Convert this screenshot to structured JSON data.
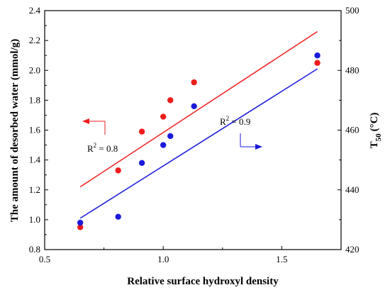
{
  "chart_data": {
    "type": "scatter",
    "title": "",
    "xlabel": "Relative surface hydroxyl density",
    "ylabel": "The amount of desorbed water (mmol/g)",
    "y2label_main": "T",
    "y2label_sub": "50",
    "y2label_unit": "(°C)",
    "xlim": [
      0.5,
      1.75
    ],
    "ylim": [
      0.8,
      2.4
    ],
    "y2lim": [
      420,
      500
    ],
    "x_ticks": [
      "0.5",
      "1.0",
      "1.5"
    ],
    "y_ticks": [
      "0.8",
      "1.0",
      "1.2",
      "1.4",
      "1.6",
      "1.8",
      "2.0",
      "2.2",
      "2.4"
    ],
    "y2_ticks": [
      "420",
      "440",
      "460",
      "480",
      "500"
    ],
    "grid": false,
    "series": [
      {
        "axis": "left",
        "color": "#ee1c1c",
        "x": [
          0.65,
          0.81,
          0.91,
          1.0,
          1.03,
          1.13,
          1.65
        ],
        "y": [
          0.95,
          1.33,
          1.59,
          1.69,
          1.8,
          1.92,
          2.05
        ],
        "fit": {
          "x": [
            0.65,
            1.65
          ],
          "y": [
            1.22,
            2.26
          ]
        },
        "fit_label": "R",
        "fit_label_sup": "2",
        "fit_label_rest": " = 0.8"
      },
      {
        "axis": "right",
        "color": "#1a1adb",
        "x": [
          0.65,
          0.81,
          0.91,
          1.0,
          1.03,
          1.13,
          1.65
        ],
        "y": [
          429,
          431,
          449,
          455,
          458,
          468,
          485
        ],
        "fit": {
          "x": [
            0.65,
            1.65
          ],
          "y": [
            430.5,
            480.5
          ]
        },
        "fit_label": "R",
        "fit_label_sup": "2",
        "fit_label_rest": " = 0.9"
      }
    ]
  }
}
